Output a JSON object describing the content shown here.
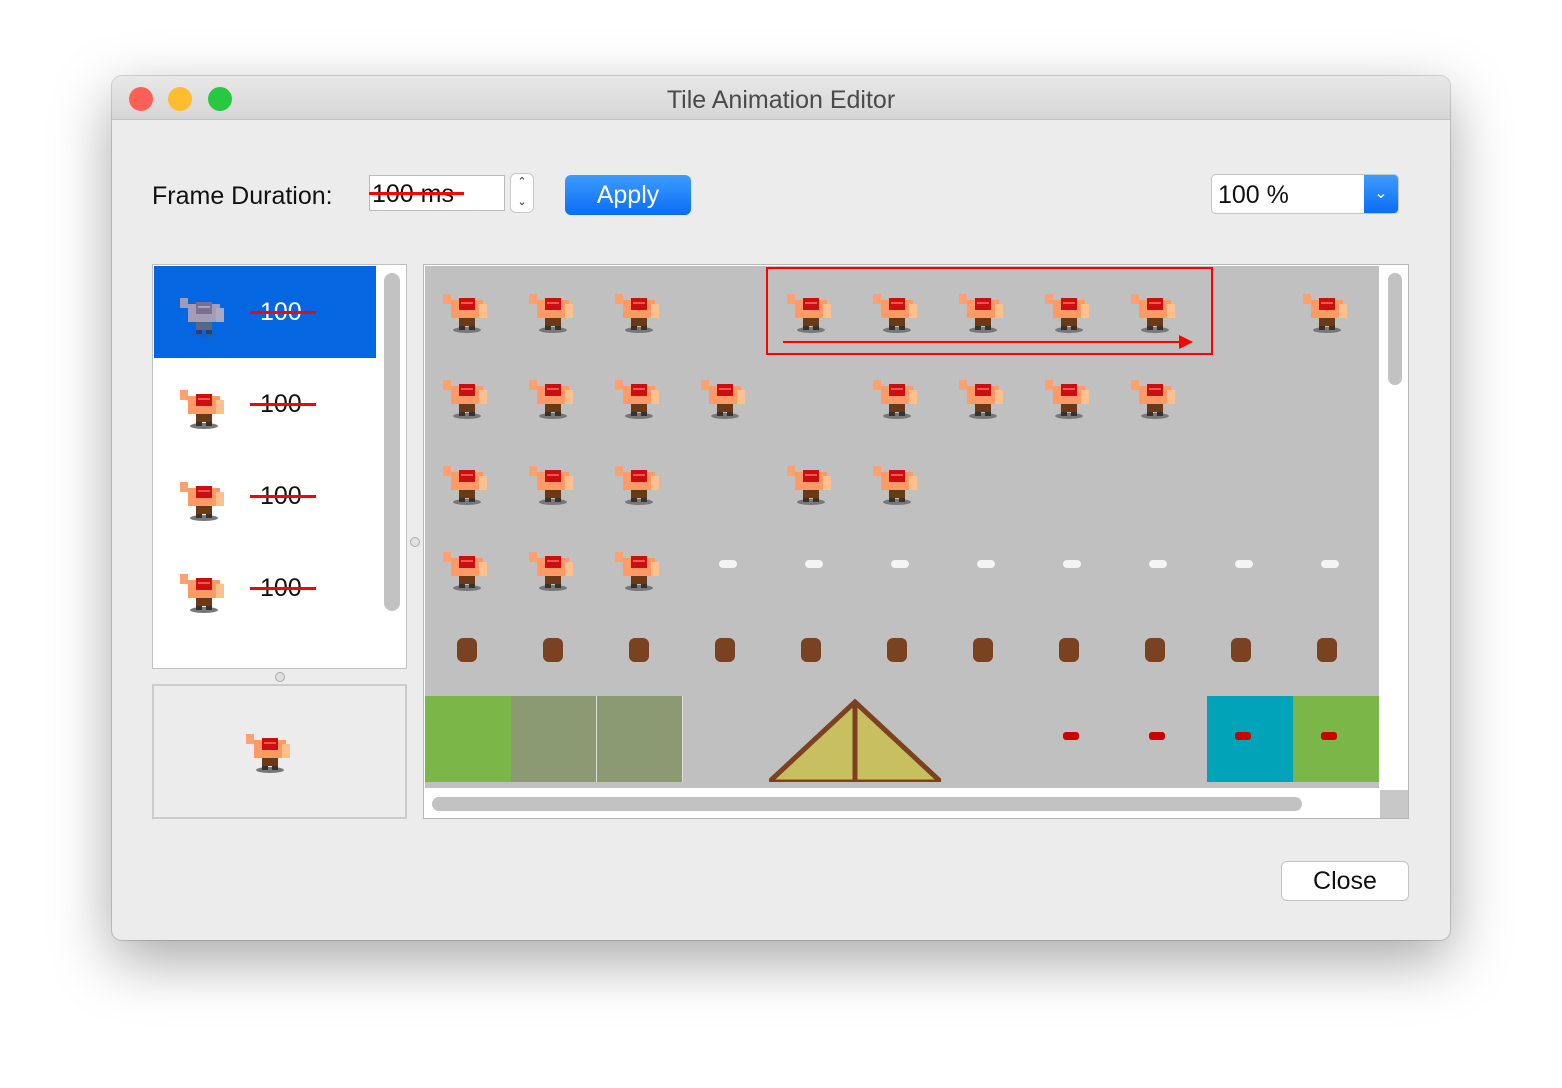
{
  "window": {
    "title": "Tile Animation Editor"
  },
  "toolbar": {
    "frame_duration_label": "Frame Duration:",
    "frame_duration_value": "100 ms",
    "apply_label": "Apply",
    "zoom_value": "100 %"
  },
  "frames": [
    {
      "duration": "100",
      "selected": true
    },
    {
      "duration": "100"
    },
    {
      "duration": "100"
    },
    {
      "duration": "100"
    }
  ],
  "footer": {
    "close_label": "Close"
  },
  "colors": {
    "accent": "#0a6df5",
    "selection": "#0566e1",
    "annotation": "#ff0000",
    "tileset_bg": "#c0c0c0"
  }
}
